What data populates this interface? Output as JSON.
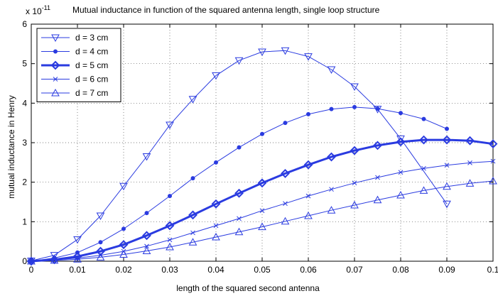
{
  "chart_data": {
    "type": "line",
    "title": "Mutual inductance in function of the squared antenna length, single loop structure",
    "exponent_base": "x 10",
    "exponent_power": "-11",
    "xlabel": "length of the squared second antenna",
    "ylabel": "mutual inductance in Henry",
    "xlim": [
      0,
      0.1
    ],
    "ylim": [
      0,
      6
    ],
    "xticks": [
      0,
      0.01,
      0.02,
      0.03,
      0.04,
      0.05,
      0.06,
      0.07,
      0.08,
      0.09,
      0.1
    ],
    "xtick_labels": [
      "0",
      "0.01",
      "0.02",
      "0.03",
      "0.04",
      "0.05",
      "0.06",
      "0.07",
      "0.08",
      "0.09",
      "0.1"
    ],
    "yticks": [
      0,
      1,
      2,
      3,
      4,
      5,
      6
    ],
    "ytick_labels": [
      "0",
      "1",
      "2",
      "3",
      "4",
      "5",
      "6"
    ],
    "grid": "dotted",
    "legend_position": "top-left",
    "line_color": "#2a3be0",
    "series": [
      {
        "name": "d = 3 cm",
        "marker": "triangle-down",
        "linewidth": 1,
        "x": [
          0,
          0.005,
          0.01,
          0.015,
          0.02,
          0.025,
          0.03,
          0.035,
          0.04,
          0.045,
          0.05,
          0.055,
          0.06,
          0.065,
          0.07,
          0.075,
          0.08,
          0.09
        ],
        "y": [
          0.01,
          0.15,
          0.55,
          1.15,
          1.9,
          2.65,
          3.45,
          4.1,
          4.7,
          5.08,
          5.3,
          5.33,
          5.18,
          4.85,
          4.42,
          3.85,
          3.1,
          1.45
        ]
      },
      {
        "name": "d = 4 cm",
        "marker": "dot",
        "linewidth": 1,
        "x": [
          0,
          0.005,
          0.01,
          0.015,
          0.02,
          0.025,
          0.03,
          0.035,
          0.04,
          0.045,
          0.05,
          0.055,
          0.06,
          0.065,
          0.07,
          0.075,
          0.08,
          0.085,
          0.09
        ],
        "y": [
          0,
          0.08,
          0.22,
          0.48,
          0.82,
          1.22,
          1.65,
          2.1,
          2.5,
          2.88,
          3.22,
          3.5,
          3.72,
          3.85,
          3.9,
          3.86,
          3.75,
          3.6,
          3.35
        ]
      },
      {
        "name": "d = 5 cm",
        "marker": "diamond",
        "linewidth": 3,
        "x": [
          0,
          0.005,
          0.01,
          0.015,
          0.02,
          0.025,
          0.03,
          0.035,
          0.04,
          0.045,
          0.05,
          0.055,
          0.06,
          0.065,
          0.07,
          0.075,
          0.08,
          0.085,
          0.09,
          0.095,
          0.1
        ],
        "y": [
          0,
          0.04,
          0.12,
          0.25,
          0.42,
          0.65,
          0.9,
          1.17,
          1.45,
          1.72,
          1.98,
          2.22,
          2.44,
          2.64,
          2.8,
          2.93,
          3.02,
          3.07,
          3.07,
          3.05,
          2.97
        ]
      },
      {
        "name": "d = 6 cm",
        "marker": "x",
        "linewidth": 1,
        "x": [
          0,
          0.005,
          0.01,
          0.015,
          0.02,
          0.025,
          0.03,
          0.035,
          0.04,
          0.045,
          0.05,
          0.055,
          0.06,
          0.065,
          0.07,
          0.075,
          0.08,
          0.085,
          0.09,
          0.095,
          0.1
        ],
        "y": [
          0,
          0.03,
          0.08,
          0.15,
          0.25,
          0.38,
          0.54,
          0.72,
          0.9,
          1.08,
          1.28,
          1.46,
          1.65,
          1.82,
          1.98,
          2.12,
          2.25,
          2.35,
          2.43,
          2.49,
          2.53
        ]
      },
      {
        "name": "d = 7 cm",
        "marker": "triangle-up",
        "linewidth": 1,
        "x": [
          0,
          0.005,
          0.01,
          0.015,
          0.02,
          0.025,
          0.03,
          0.035,
          0.04,
          0.045,
          0.05,
          0.055,
          0.06,
          0.065,
          0.07,
          0.075,
          0.08,
          0.085,
          0.09,
          0.095,
          0.1
        ],
        "y": [
          0,
          0.02,
          0.05,
          0.1,
          0.17,
          0.26,
          0.36,
          0.48,
          0.61,
          0.74,
          0.87,
          1.01,
          1.15,
          1.29,
          1.42,
          1.55,
          1.67,
          1.79,
          1.89,
          1.97,
          2.03
        ]
      }
    ]
  }
}
